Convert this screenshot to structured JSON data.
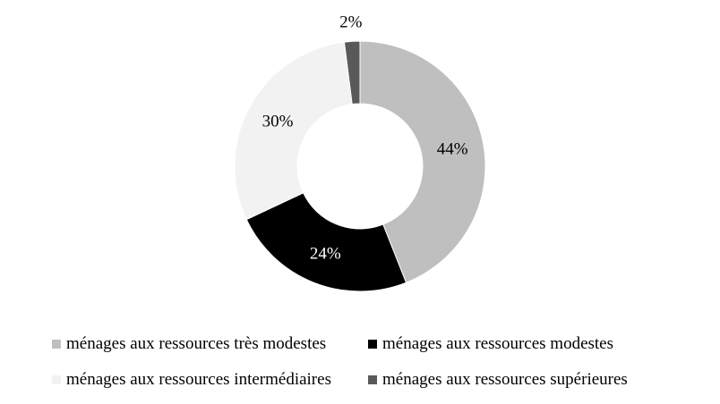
{
  "chart_data": {
    "type": "pie",
    "variant": "donut",
    "categories": [
      "ménages aux ressources très modestes",
      "ménages aux ressources modestes",
      "ménages aux ressources intermédiaires",
      "ménages aux ressources supérieures"
    ],
    "values": [
      44,
      24,
      30,
      2
    ],
    "data_labels": [
      "44%",
      "24%",
      "30%",
      "2%"
    ],
    "colors": [
      "#bfbfbf",
      "#000000",
      "#f2f2f2",
      "#595959"
    ],
    "label_colors": [
      "#000000",
      "#ffffff",
      "#000000",
      "#000000"
    ],
    "legend_position": "bottom"
  }
}
